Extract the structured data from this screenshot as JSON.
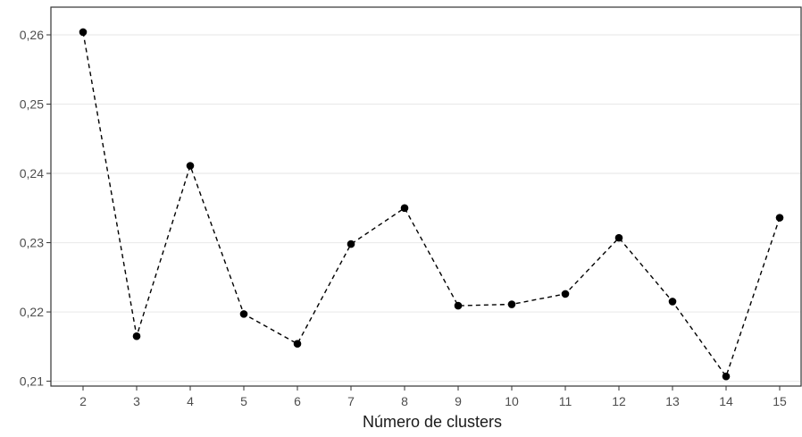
{
  "chart_data": {
    "type": "line",
    "title": "",
    "xlabel": "Número de clusters",
    "ylabel": "",
    "x": [
      2,
      3,
      4,
      5,
      6,
      7,
      8,
      9,
      10,
      11,
      12,
      13,
      14,
      15
    ],
    "x_tick_labels": [
      "2",
      "3",
      "4",
      "5",
      "6",
      "7",
      "8",
      "9",
      "10",
      "11",
      "12",
      "13",
      "14",
      "15"
    ],
    "y_ticks": [
      0.21,
      0.22,
      0.23,
      0.24,
      0.25,
      0.26
    ],
    "y_tick_labels": [
      "0,21",
      "0,22",
      "0,23",
      "0,24",
      "0,25",
      "0,26"
    ],
    "series": [
      {
        "values": [
          0.2604,
          0.2165,
          0.2411,
          0.2197,
          0.2154,
          0.2298,
          0.235,
          0.2209,
          0.2211,
          0.2226,
          0.2307,
          0.2215,
          0.2107,
          0.2336
        ]
      }
    ],
    "xlim": [
      1.4,
      15.4
    ],
    "ylim": [
      0.2093,
      0.264
    ],
    "grid": "horizontal major",
    "line_style": "dashed",
    "marker": "filled circle",
    "color": "#000000"
  }
}
